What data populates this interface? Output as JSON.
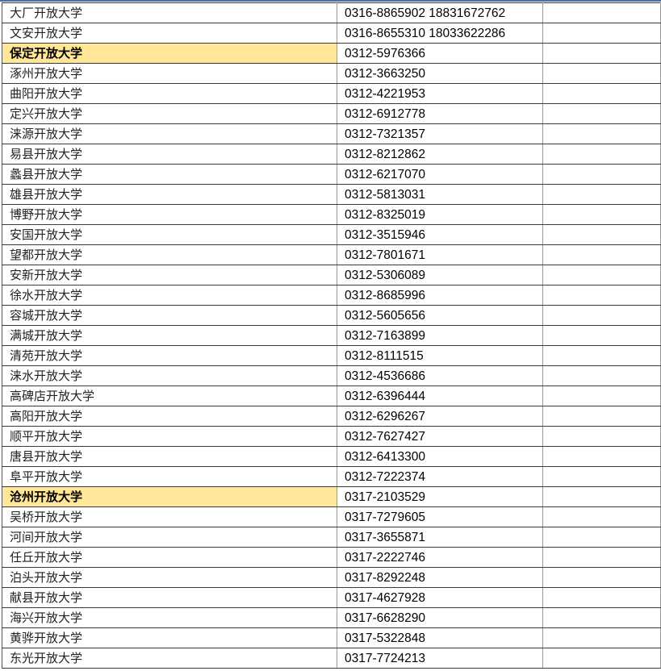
{
  "highlight_color": "#ffe699",
  "rows": [
    {
      "name": "大厂开放大学",
      "phone": "0316-8865902 18831672762",
      "highlight": false
    },
    {
      "name": "文安开放大学",
      "phone": "0316-8655310 18033622286",
      "highlight": false
    },
    {
      "name": "保定开放大学",
      "phone": "0312-5976366",
      "highlight": true
    },
    {
      "name": "涿州开放大学",
      "phone": "0312-3663250",
      "highlight": false
    },
    {
      "name": "曲阳开放大学",
      "phone": "0312-4221953",
      "highlight": false
    },
    {
      "name": "定兴开放大学",
      "phone": "0312-6912778",
      "highlight": false
    },
    {
      "name": "涞源开放大学",
      "phone": "0312-7321357",
      "highlight": false
    },
    {
      "name": "易县开放大学",
      "phone": "0312-8212862",
      "highlight": false
    },
    {
      "name": "蠡县开放大学",
      "phone": "0312-6217070",
      "highlight": false
    },
    {
      "name": "雄县开放大学",
      "phone": "0312-5813031",
      "highlight": false
    },
    {
      "name": "博野开放大学",
      "phone": "0312-8325019",
      "highlight": false
    },
    {
      "name": "安国开放大学",
      "phone": "0312-3515946",
      "highlight": false
    },
    {
      "name": "望都开放大学",
      "phone": "0312-7801671",
      "highlight": false
    },
    {
      "name": "安新开放大学",
      "phone": "0312-5306089",
      "highlight": false
    },
    {
      "name": "徐水开放大学",
      "phone": "0312-8685996",
      "highlight": false
    },
    {
      "name": "容城开放大学",
      "phone": "0312-5605656",
      "highlight": false
    },
    {
      "name": "满城开放大学",
      "phone": "0312-7163899",
      "highlight": false
    },
    {
      "name": "清苑开放大学",
      "phone": "0312-8111515",
      "highlight": false
    },
    {
      "name": "涞水开放大学",
      "phone": "0312-4536686",
      "highlight": false
    },
    {
      "name": "高碑店开放大学",
      "phone": "0312-6396444",
      "highlight": false
    },
    {
      "name": "高阳开放大学",
      "phone": "0312-6296267",
      "highlight": false
    },
    {
      "name": "顺平开放大学",
      "phone": "0312-7627427",
      "highlight": false
    },
    {
      "name": "唐县开放大学",
      "phone": "0312-6413300",
      "highlight": false
    },
    {
      "name": "阜平开放大学",
      "phone": "0312-7222374",
      "highlight": false
    },
    {
      "name": "沧州开放大学",
      "phone": "0317-2103529",
      "highlight": true
    },
    {
      "name": "吴桥开放大学",
      "phone": "0317-7279605",
      "highlight": false
    },
    {
      "name": "河间开放大学",
      "phone": "0317-3655871",
      "highlight": false
    },
    {
      "name": "任丘开放大学",
      "phone": "0317-2222746",
      "highlight": false
    },
    {
      "name": "泊头开放大学",
      "phone": "0317-8292248",
      "highlight": false
    },
    {
      "name": "献县开放大学",
      "phone": "0317-4627928",
      "highlight": false
    },
    {
      "name": "海兴开放大学",
      "phone": "0317-6628290",
      "highlight": false
    },
    {
      "name": "黄骅开放大学",
      "phone": "0317-5322848",
      "highlight": false
    },
    {
      "name": "东光开放大学",
      "phone": "0317-7724213",
      "highlight": false
    }
  ]
}
